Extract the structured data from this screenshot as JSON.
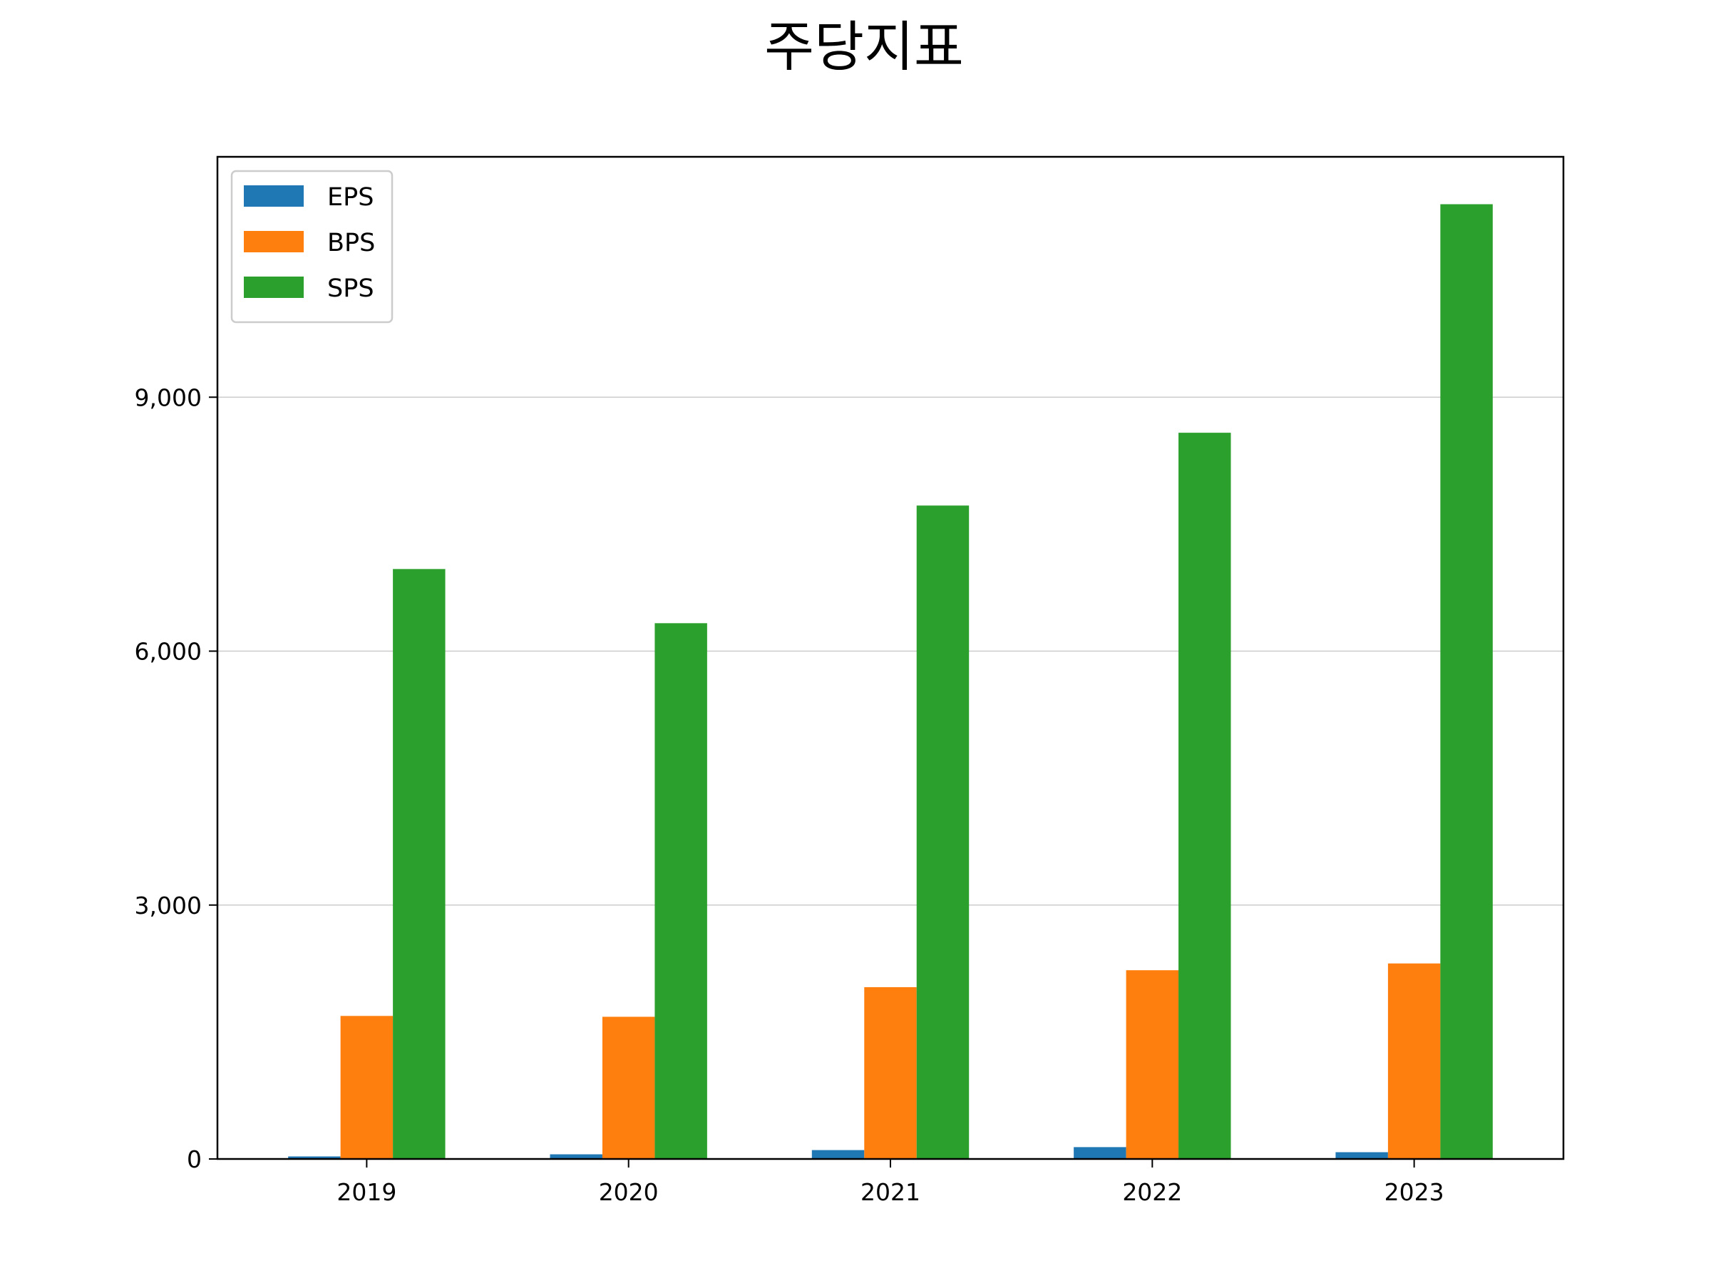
{
  "chart_data": {
    "type": "bar",
    "title": "주당지표",
    "xlabel": "",
    "ylabel": "",
    "categories": [
      "2019",
      "2020",
      "2021",
      "2022",
      "2023"
    ],
    "series": [
      {
        "name": "EPS",
        "color": "#1f77b4",
        "values": [
          30,
          55,
          105,
          140,
          80
        ]
      },
      {
        "name": "BPS",
        "color": "#ff7f0e",
        "values": [
          1690,
          1680,
          2030,
          2230,
          2310
        ]
      },
      {
        "name": "SPS",
        "color": "#2ca02c",
        "values": [
          6970,
          6330,
          7720,
          8580,
          11280
        ]
      }
    ],
    "ylim": [
      0,
      11840
    ],
    "yticks": [
      0,
      3000,
      6000,
      9000
    ],
    "ytick_labels": [
      "0",
      "3,000",
      "6,000",
      "9,000"
    ],
    "grid": "y",
    "legend_position": "top-left"
  }
}
